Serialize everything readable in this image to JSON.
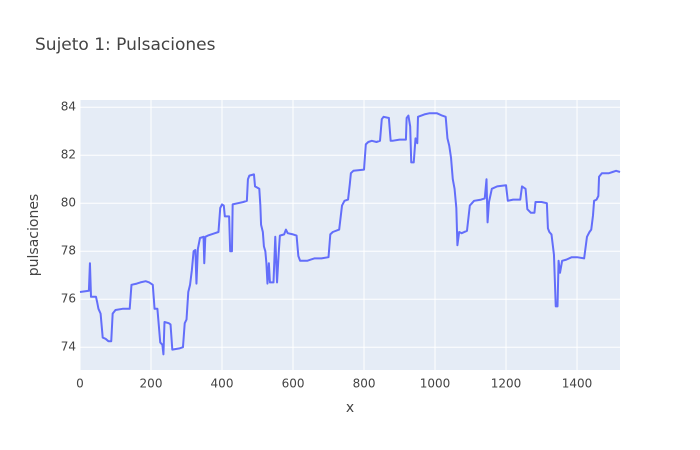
{
  "chart_data": {
    "type": "line",
    "title": "Sujeto 1: Pulsaciones",
    "x_label": "x",
    "y_label": "pulsaciones",
    "color": "#636efa",
    "grid": true,
    "x": [
      0,
      25,
      28,
      31,
      45,
      48,
      52,
      58,
      64,
      72,
      80,
      88,
      92,
      100,
      120,
      140,
      145,
      160,
      170,
      185,
      195,
      205,
      210,
      218,
      222,
      226,
      232,
      235,
      238,
      250,
      255,
      260,
      280,
      290,
      295,
      300,
      305,
      310,
      315,
      320,
      325,
      328,
      332,
      338,
      348,
      350,
      353,
      360,
      380,
      390,
      395,
      400,
      405,
      408,
      420,
      423,
      428,
      430,
      445,
      460,
      470,
      473,
      477,
      490,
      493,
      505,
      508,
      510,
      515,
      518,
      522,
      525,
      528,
      532,
      535,
      545,
      550,
      555,
      560,
      563,
      575,
      580,
      585,
      600,
      610,
      615,
      620,
      640,
      650,
      660,
      680,
      700,
      705,
      712,
      730,
      738,
      745,
      755,
      760,
      763,
      770,
      800,
      805,
      812,
      822,
      835,
      845,
      850,
      855,
      870,
      875,
      880,
      900,
      918,
      920,
      925,
      930,
      933,
      940,
      945,
      950,
      952,
      970,
      985,
      1005,
      1020,
      1030,
      1035,
      1040,
      1045,
      1050,
      1055,
      1060,
      1063,
      1068,
      1075,
      1090,
      1098,
      1110,
      1130,
      1140,
      1145,
      1148,
      1152,
      1160,
      1175,
      1200,
      1205,
      1220,
      1240,
      1245,
      1255,
      1260,
      1270,
      1280,
      1283,
      1300,
      1315,
      1318,
      1322,
      1328,
      1335,
      1340,
      1345,
      1348,
      1352,
      1358,
      1370,
      1385,
      1400,
      1420,
      1428,
      1435,
      1440,
      1445,
      1448,
      1455,
      1460,
      1462,
      1470,
      1490,
      1500,
      1510,
      1521
    ],
    "values": [
      76.3,
      76.35,
      77.5,
      76.1,
      76.1,
      75.9,
      75.6,
      75.4,
      74.4,
      74.35,
      74.25,
      74.25,
      75.4,
      75.55,
      75.6,
      75.6,
      76.6,
      76.65,
      76.7,
      76.75,
      76.7,
      76.6,
      75.6,
      75.6,
      74.9,
      74.2,
      74.1,
      73.7,
      75.05,
      75.0,
      74.95,
      73.9,
      73.95,
      74.0,
      75.0,
      75.15,
      76.3,
      76.6,
      77.2,
      78.0,
      78.05,
      76.65,
      78.1,
      78.55,
      78.6,
      77.5,
      78.6,
      78.65,
      78.75,
      78.8,
      79.8,
      79.95,
      79.9,
      79.45,
      79.45,
      78.0,
      78.0,
      79.95,
      80.0,
      80.05,
      80.1,
      81.0,
      81.15,
      81.2,
      80.7,
      80.6,
      79.9,
      79.1,
      78.8,
      78.2,
      78.0,
      77.5,
      76.65,
      77.5,
      76.7,
      76.7,
      78.6,
      76.7,
      78.0,
      78.65,
      78.7,
      78.9,
      78.75,
      78.7,
      78.65,
      77.8,
      77.6,
      77.6,
      77.65,
      77.7,
      77.7,
      77.75,
      78.7,
      78.8,
      78.9,
      79.9,
      80.1,
      80.15,
      80.8,
      81.25,
      81.35,
      81.4,
      82.45,
      82.55,
      82.6,
      82.55,
      82.6,
      83.5,
      83.6,
      83.55,
      82.6,
      82.6,
      82.65,
      82.65,
      83.55,
      83.65,
      83.2,
      81.7,
      81.7,
      82.7,
      82.5,
      83.6,
      83.7,
      83.75,
      83.75,
      83.65,
      83.6,
      82.7,
      82.4,
      81.9,
      81.0,
      80.6,
      79.8,
      78.25,
      78.8,
      78.75,
      78.85,
      79.9,
      80.1,
      80.15,
      80.2,
      81.0,
      79.2,
      80.05,
      80.6,
      80.7,
      80.75,
      80.1,
      80.15,
      80.15,
      80.7,
      80.6,
      79.75,
      79.6,
      79.6,
      80.05,
      80.05,
      80.0,
      78.95,
      78.8,
      78.7,
      77.85,
      75.7,
      75.7,
      77.6,
      77.1,
      77.6,
      77.65,
      77.75,
      77.75,
      77.7,
      78.6,
      78.8,
      78.9,
      79.5,
      80.1,
      80.15,
      80.3,
      81.1,
      81.25,
      81.25,
      81.3,
      81.35,
      81.3
    ],
    "xlim": [
      0,
      1521
    ],
    "ylim": [
      73.05,
      84.3
    ],
    "xticks": [
      0,
      200,
      400,
      600,
      800,
      1000,
      1200,
      1400
    ],
    "yticks": [
      74,
      76,
      78,
      80,
      82,
      84
    ]
  }
}
